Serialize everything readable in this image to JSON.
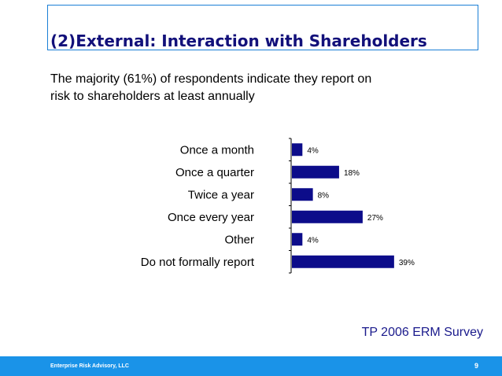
{
  "slide": {
    "title": "(2)External: Interaction with Shareholders",
    "subtitle": "The majority (61%) of respondents indicate they report on risk to shareholders at least annually",
    "source": "TP 2006 ERM Survey"
  },
  "footer": {
    "company": "Enterprise Risk Advisory, LLC",
    "page_number": "9"
  },
  "colors": {
    "bar": "#0c0c8a",
    "title": "#12107a",
    "footer": "#1a93e8",
    "title_border": "#1a7fd6"
  },
  "chart_data": {
    "type": "bar",
    "orientation": "horizontal",
    "categories": [
      "Once a month",
      "Once a quarter",
      "Twice a year",
      "Once every year",
      "Other",
      "Do not formally report"
    ],
    "values": [
      4,
      18,
      8,
      27,
      4,
      39
    ],
    "value_labels": [
      "4%",
      "18%",
      "8%",
      "27%",
      "4%",
      "39%"
    ],
    "unit": "%",
    "xlim": [
      0,
      45
    ],
    "grid": false,
    "legend": "none"
  }
}
